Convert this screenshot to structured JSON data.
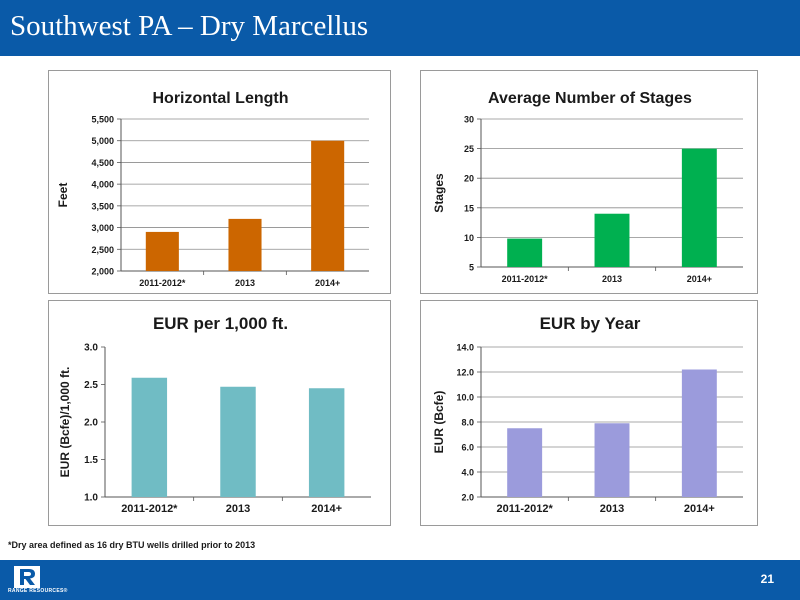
{
  "header": {
    "title": "Southwest PA – Dry Marcellus"
  },
  "footnote": "*Dry area defined as 16 dry BTU wells drilled prior to 2013",
  "footer": {
    "logo_text": "RANGE RESOURCES®",
    "page_number": "21"
  },
  "colors": {
    "header_bg": "#0a5aa8",
    "orange": "#cc6600",
    "green": "#00b050",
    "teal": "#70bcc4",
    "lavender": "#9b9bdc"
  },
  "chart_data": [
    {
      "type": "bar",
      "title": "Horizontal Length",
      "ylabel": "Feet",
      "categories": [
        "2011-2012*",
        "2013",
        "2014+"
      ],
      "values": [
        2900,
        3200,
        5000
      ],
      "ylim": [
        2000,
        5500
      ],
      "yticks": [
        "2,000",
        "2,500",
        "3,000",
        "3,500",
        "4,000",
        "4,500",
        "5,000",
        "5,500"
      ],
      "color": "#cc6600",
      "grid": true
    },
    {
      "type": "bar",
      "title": "Average Number of Stages",
      "ylabel": "Stages",
      "categories": [
        "2011-2012*",
        "2013",
        "2014+"
      ],
      "values": [
        9.8,
        14,
        25
      ],
      "ylim": [
        5,
        30
      ],
      "yticks": [
        "5",
        "10",
        "15",
        "20",
        "25",
        "30"
      ],
      "color": "#00b050",
      "grid": true
    },
    {
      "type": "bar",
      "title": "EUR per 1,000 ft.",
      "ylabel": "EUR (Bcfe)/1,000 ft.",
      "categories": [
        "2011-2012*",
        "2013",
        "2014+"
      ],
      "values": [
        2.59,
        2.47,
        2.45
      ],
      "ylim": [
        1.0,
        3.0
      ],
      "yticks": [
        "1.0",
        "1.5",
        "2.0",
        "2.5",
        "3.0"
      ],
      "color": "#70bcc4",
      "grid": false
    },
    {
      "type": "bar",
      "title": "EUR by Year",
      "ylabel": "EUR (Bcfe)",
      "categories": [
        "2011-2012*",
        "2013",
        "2014+"
      ],
      "values": [
        7.5,
        7.9,
        12.2
      ],
      "ylim": [
        2.0,
        14.0
      ],
      "yticks": [
        "2.0",
        "4.0",
        "6.0",
        "8.0",
        "10.0",
        "12.0",
        "14.0"
      ],
      "color": "#9b9bdc",
      "grid": true
    }
  ]
}
